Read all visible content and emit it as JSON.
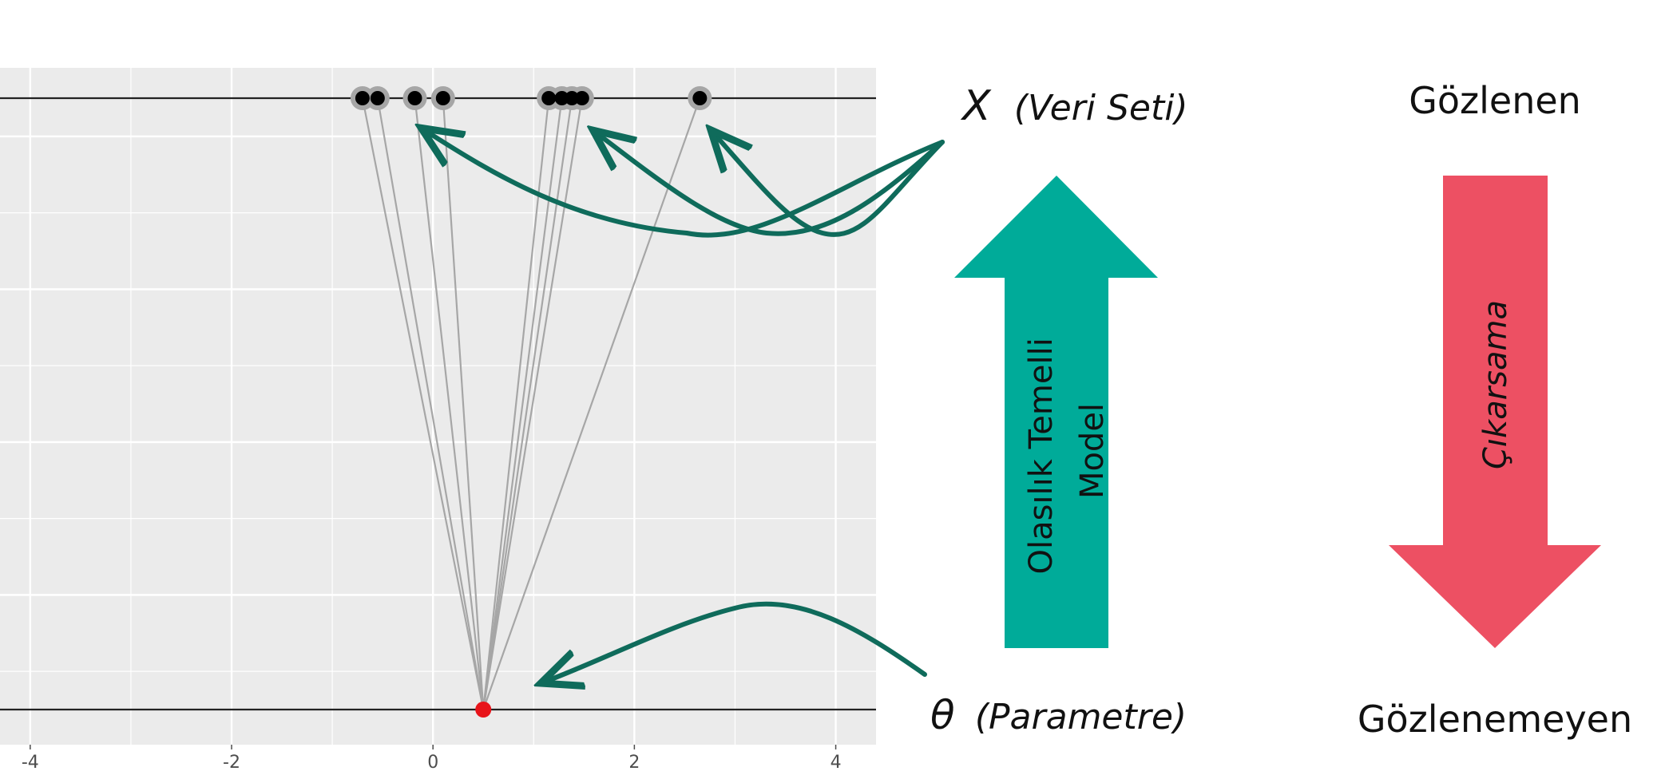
{
  "plot": {
    "x_ticks": [
      "-4",
      "-2",
      "0",
      "2",
      "4"
    ],
    "x_range": [
      -4.3,
      4.4
    ],
    "observed_points": [
      -0.7,
      -0.55,
      -0.18,
      0.1,
      1.15,
      1.28,
      1.38,
      1.48,
      2.65
    ],
    "parameter_value": 0.5,
    "colors": {
      "panel_bg": "#ebebeb",
      "grid": "#ffffff",
      "line": "#222222",
      "link": "#a6a6a6",
      "point": "#000000",
      "point_halo": "#a6a6a6",
      "parameter_point": "#e8141a"
    }
  },
  "labels": {
    "data_symbol": "X",
    "data_text": "(Veri Seti)",
    "param_symbol": "θ",
    "param_text": "(Parametre)",
    "observed": "Gözlenen",
    "unobserved": "Gözlenemeyen",
    "model_line1": "Olasılık Temelli",
    "model_line2": "Model",
    "inference": "Çıkarsama"
  },
  "colors": {
    "model_arrow": "#00ab99",
    "inference_arrow": "#ed5063",
    "pointer_arrow": "#0f6b5b"
  }
}
